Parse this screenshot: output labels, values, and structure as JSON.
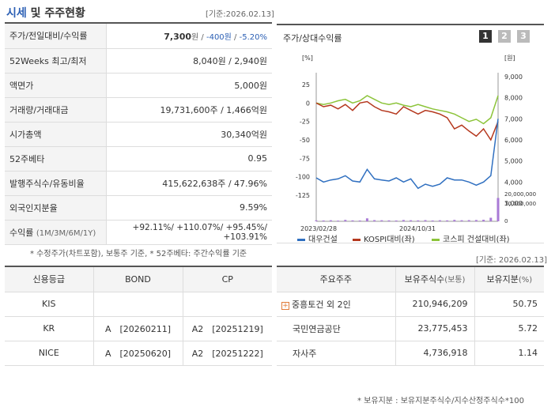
{
  "header": {
    "title_blue": "시세",
    "title_rest": " 및 주주현황",
    "base_date": "[기준:2026.02.13]"
  },
  "info": {
    "rows": [
      {
        "label": "주가/전일대비/수익률"
      },
      {
        "label": "52Weeks 최고/최저",
        "value": "8,040원 / 2,940원"
      },
      {
        "label": "액면가",
        "value": "5,000원"
      },
      {
        "label": "거래량/거래대금",
        "value": "19,731,600주 / 1,466억원"
      },
      {
        "label": "시가총액",
        "value": "30,340억원"
      },
      {
        "label": "52주베타",
        "value": "0.95"
      },
      {
        "label": "발행주식수/유동비율",
        "value": "415,622,638주 / 47.96%"
      },
      {
        "label": "외국인지분율",
        "value": "9.59%"
      },
      {
        "label": "수익률",
        "label_small": "(1M/3M/6M/1Y)"
      }
    ],
    "price": "7,300",
    "price_unit": "원 / ",
    "change": "-400원",
    "sep": " / ",
    "change_pct": "-5.20%",
    "returns": "+92.11%/ +110.07%/ +95.45%/ +103.91%",
    "note": "* 수정주가(차트포함), 보통주 기준, * 52주베타: 주간수익률 기준"
  },
  "chart": {
    "title": "주가/상대수익률",
    "pages": [
      "1",
      "2",
      "3"
    ],
    "left_unit": "[%]",
    "right_unit": "[원]",
    "left_ticks": [
      "25",
      "0",
      "-25",
      "-50",
      "-75",
      "-100",
      "-125"
    ],
    "right_ticks": [
      "9,000",
      "8,000",
      "7,000",
      "6,000",
      "5,000",
      "4,000",
      "3,000"
    ],
    "vol_ticks": [
      "20,000,000",
      "10,000,000",
      "0"
    ],
    "x_ticks": [
      "2023/02/28",
      "2024/10/31"
    ],
    "legend": {
      "s1": "대우건설",
      "s2": "KOSPI대비(좌)",
      "s3": "코스피 건설대비(좌)",
      "s4": "거래량"
    },
    "colors": {
      "s1": "#2f6fc0",
      "s2": "#b5381e",
      "s3": "#8cc43a",
      "s4": "#a97ad6"
    }
  },
  "chart_data": {
    "type": "line",
    "series": [
      {
        "name": "대우건설",
        "axis": "right",
        "values": [
          4200,
          4000,
          4100,
          4150,
          4300,
          4050,
          4000,
          4600,
          4150,
          4100,
          4050,
          4200,
          4000,
          4150,
          3700,
          3900,
          3800,
          3900,
          4200,
          4100,
          4100,
          4000,
          3850,
          4000,
          4300,
          7000
        ]
      },
      {
        "name": "KOSPI대비(좌)",
        "axis": "left",
        "values": [
          0,
          -5,
          -3,
          -8,
          -2,
          -10,
          0,
          2,
          -5,
          -10,
          -12,
          -15,
          -5,
          -10,
          -15,
          -10,
          -12,
          -15,
          -20,
          -35,
          -30,
          -38,
          -45,
          -35,
          -50,
          -25
        ]
      },
      {
        "name": "코스피 건설대비(좌)",
        "axis": "left",
        "values": [
          0,
          -2,
          0,
          3,
          5,
          0,
          3,
          10,
          5,
          0,
          -2,
          0,
          -3,
          -5,
          -2,
          -5,
          -8,
          -10,
          -12,
          -15,
          -20,
          -25,
          -22,
          -28,
          -20,
          10
        ]
      },
      {
        "name": "거래량",
        "axis": "volume",
        "values": [
          800000,
          700000,
          900000,
          600000,
          1200000,
          800000,
          700000,
          2500000,
          1000000,
          900000,
          800000,
          700000,
          1100000,
          900000,
          800000,
          1000000,
          700000,
          900000,
          800000,
          1200000,
          900000,
          1000000,
          1100000,
          1300000,
          3000000,
          19700000
        ]
      }
    ],
    "x_ticks": [
      "2023/02/28",
      "2024/10/31"
    ],
    "ylim_left": [
      -125,
      25
    ],
    "ylim_right": [
      3000,
      9000
    ]
  },
  "credit": {
    "headers": [
      "신용등급",
      "BOND",
      "CP"
    ],
    "rows": [
      [
        "KIS",
        "",
        ""
      ],
      [
        "KR",
        "A　[20260211]",
        "A2　[20251219]"
      ],
      [
        "NICE",
        "A　[20250620]",
        "A2　[20251222]"
      ]
    ]
  },
  "holders": {
    "base_date": "[기준: 2026.02.13]",
    "headers": [
      "주요주주",
      "보유주식수",
      "(보통)",
      "보유지분",
      "(%)"
    ],
    "rows": [
      {
        "name": "중흥토건 외 2인",
        "shares": "210,946,209",
        "pct": "50.75"
      },
      {
        "name": "국민연금공단",
        "shares": "23,775,453",
        "pct": "5.72"
      },
      {
        "name": "자사주",
        "shares": "4,736,918",
        "pct": "1.14"
      }
    ],
    "note": "* 보유지분 : 보유지분주식수/지수산정주식수*100"
  }
}
